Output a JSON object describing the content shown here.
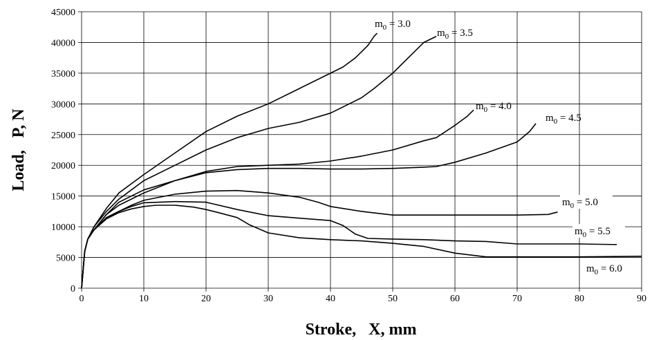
{
  "chart_data": {
    "type": "line",
    "xlabel": "Stroke,   X, mm",
    "ylabel": "Load,   P, N",
    "xlim": [
      0,
      90
    ],
    "ylim": [
      0,
      45000
    ],
    "xticks": [
      0,
      10,
      20,
      30,
      40,
      50,
      60,
      70,
      80,
      90
    ],
    "yticks": [
      0,
      5000,
      10000,
      15000,
      20000,
      25000,
      30000,
      35000,
      40000,
      45000
    ],
    "grid": true,
    "series": [
      {
        "name": "m0 = 3.0",
        "label_base": "m",
        "label_sub": "0",
        "label_rest": " = 3.0",
        "x": [
          0,
          0.5,
          1,
          2,
          4,
          6,
          8,
          10,
          15,
          20,
          25,
          30,
          35,
          40,
          42,
          44,
          45,
          46,
          47,
          47.5
        ],
        "y": [
          0,
          6000,
          8000,
          10000,
          13000,
          15500,
          17000,
          18500,
          22000,
          25500,
          28000,
          30000,
          32500,
          35000,
          36000,
          37500,
          38500,
          39500,
          41000,
          41500
        ]
      },
      {
        "name": "m0 = 3.5",
        "label_base": "m",
        "label_sub": "0",
        "label_rest": " = 3.5",
        "x": [
          0,
          0.5,
          1,
          2,
          4,
          6,
          8,
          10,
          15,
          20,
          25,
          30,
          35,
          40,
          42,
          45,
          47,
          50,
          52,
          55,
          57
        ],
        "y": [
          0,
          6000,
          8000,
          10000,
          12500,
          14500,
          16000,
          17500,
          20000,
          22500,
          24500,
          26000,
          27000,
          28500,
          29500,
          31000,
          32500,
          35000,
          37000,
          40000,
          41000
        ]
      },
      {
        "name": "m0 = 4.0",
        "label_base": "m",
        "label_sub": "0",
        "label_rest": " = 4.0",
        "x": [
          0,
          0.5,
          1,
          2,
          4,
          6,
          8,
          10,
          15,
          20,
          25,
          30,
          35,
          40,
          45,
          50,
          55,
          57,
          60,
          62,
          63
        ],
        "y": [
          0,
          6000,
          8000,
          9500,
          12000,
          14000,
          15000,
          16000,
          17500,
          19000,
          19800,
          20000,
          20200,
          20700,
          21500,
          22500,
          24000,
          24500,
          26500,
          28000,
          29000
        ]
      },
      {
        "name": "m0 = 4.5",
        "label_base": "m",
        "label_sub": "0",
        "label_rest": " = 4.5",
        "x": [
          0,
          0.5,
          1,
          2,
          4,
          6,
          8,
          10,
          15,
          20,
          25,
          30,
          35,
          40,
          45,
          50,
          55,
          57,
          60,
          65,
          70,
          72,
          73
        ],
        "y": [
          0,
          6000,
          8000,
          9500,
          12000,
          13500,
          14500,
          15500,
          17500,
          18800,
          19300,
          19500,
          19500,
          19400,
          19400,
          19500,
          19700,
          19800,
          20500,
          22000,
          23800,
          25500,
          26800
        ]
      },
      {
        "name": "m0 = 5.0",
        "label_base": "m",
        "label_sub": "0",
        "label_rest": " = 5.0",
        "x": [
          0,
          0.5,
          1,
          2,
          4,
          6,
          8,
          10,
          15,
          20,
          25,
          30,
          35,
          38,
          40,
          45,
          50,
          55,
          60,
          65,
          70,
          75,
          76.5
        ],
        "y": [
          0,
          6000,
          8000,
          9500,
          11500,
          12500,
          13500,
          14300,
          15300,
          15800,
          15900,
          15500,
          14800,
          14000,
          13300,
          12500,
          11900,
          11900,
          11900,
          11900,
          11900,
          12000,
          12400
        ]
      },
      {
        "name": "m0 = 5.5",
        "label_base": "m",
        "label_sub": "0",
        "label_rest": " = 5.5",
        "x": [
          0,
          0.5,
          1,
          2,
          4,
          6,
          8,
          10,
          15,
          20,
          25,
          30,
          35,
          40,
          42,
          44,
          46,
          50,
          55,
          60,
          65,
          70,
          75,
          80,
          86
        ],
        "y": [
          0,
          6000,
          8000,
          9500,
          11500,
          12500,
          13300,
          13900,
          14100,
          14000,
          12800,
          11800,
          11400,
          11000,
          10200,
          8800,
          8100,
          8000,
          7900,
          7700,
          7600,
          7200,
          7200,
          7200,
          7100
        ]
      },
      {
        "name": "m0 = 6.0",
        "label_base": "m",
        "label_sub": "0",
        "label_rest": " = 6.0",
        "x": [
          0,
          0.5,
          1,
          2,
          4,
          6,
          8,
          10,
          12,
          15,
          18,
          20,
          22,
          25,
          27,
          30,
          35,
          40,
          45,
          50,
          55,
          60,
          65,
          70,
          80,
          90
        ],
        "y": [
          0,
          6000,
          8000,
          9500,
          11300,
          12300,
          12900,
          13300,
          13500,
          13500,
          13200,
          12800,
          12300,
          11500,
          10300,
          9000,
          8200,
          7900,
          7700,
          7300,
          6800,
          5700,
          5100,
          5100,
          5100,
          5200
        ]
      }
    ]
  }
}
